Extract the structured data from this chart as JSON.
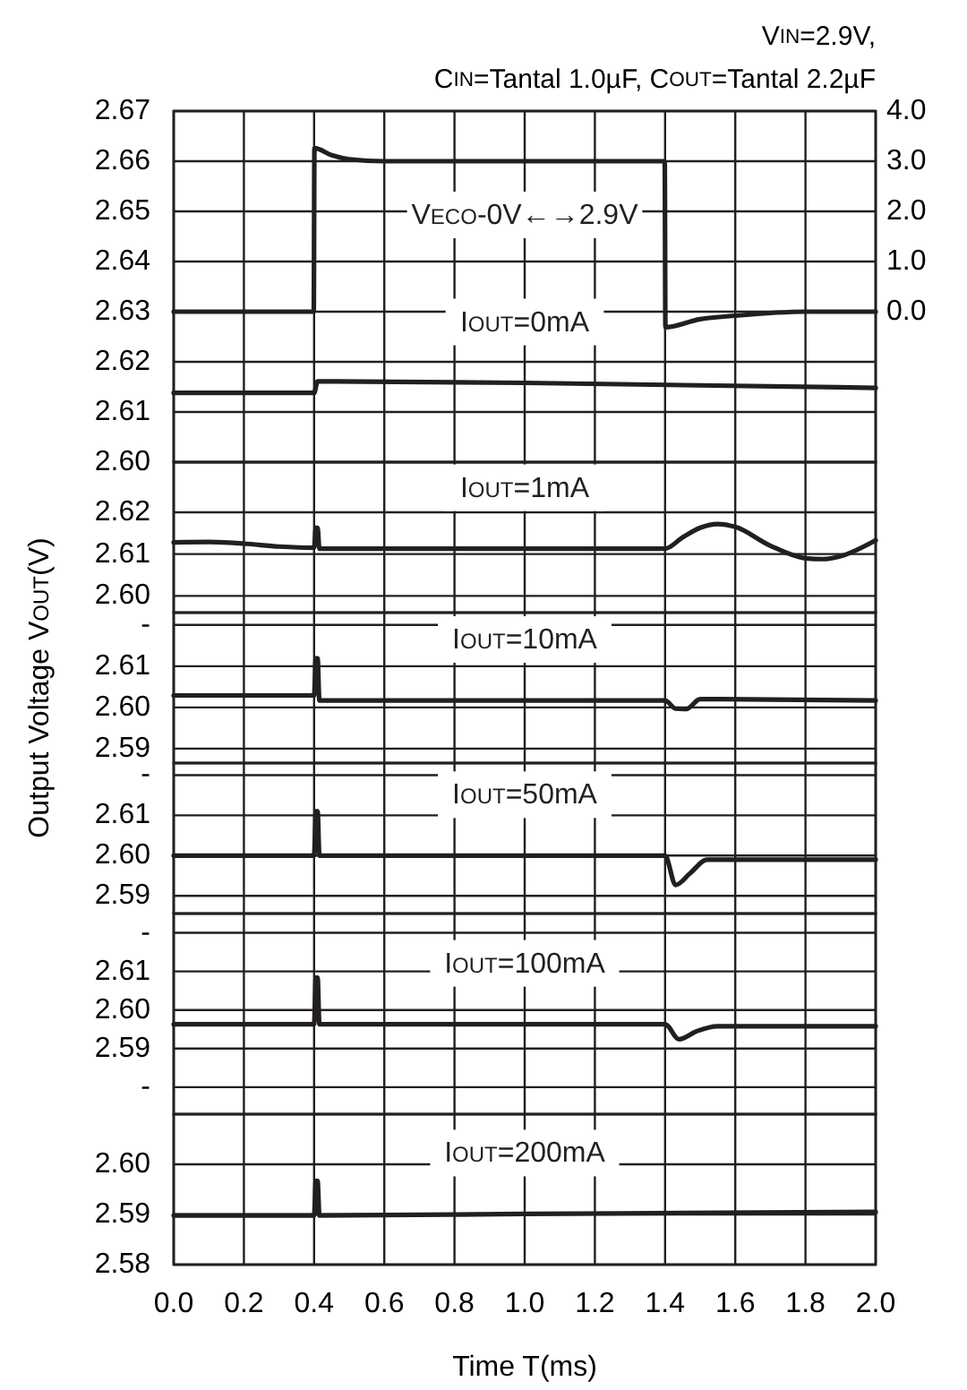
{
  "chart_data": [
    {
      "type": "line",
      "title": "V$_{IN}$=2.9V,",
      "subtitle": "C$_{IN}$=Tantal 1.0µF, C$_{OUT}$=Tantal 2.2µF",
      "xlim": [
        0,
        2
      ],
      "xticks": [
        0,
        0.2,
        0.4,
        0.6,
        0.8,
        1,
        1.2,
        1.4,
        1.6,
        1.8,
        2
      ],
      "ylim": [
        2.6,
        2.67
      ],
      "yticks": [
        2.67,
        2.66,
        2.65,
        2.64,
        2.63,
        2.62,
        2.61,
        {
          "value": 2.6,
          "label": "2.60"
        }
      ],
      "y2lim": [
        -3,
        4
      ],
      "y2ticks": [
        {
          "value": 4,
          "label": "4.0"
        },
        {
          "value": 3,
          "label": "3.0"
        },
        {
          "value": 2,
          "label": "2.0"
        },
        {
          "value": 1,
          "label": "1.0"
        },
        {
          "value": 0,
          "label": "0.0"
        }
      ],
      "grid": true,
      "tick_labels": "y",
      "series": [
        {
          "name": "V$_{ECO}$-0V←→2.9V",
          "color": "#231f20",
          "axis": "y2",
          "x": [
            0,
            0.399,
            0.401,
            0.45,
            0.5,
            0.6,
            1.399,
            1.401,
            1.5,
            1.6,
            1.8,
            2.0
          ],
          "values": [
            0,
            0,
            3.26,
            3.12,
            3.04,
            3.0,
            3.0,
            -0.31,
            -0.15,
            -0.08,
            0,
            0
          ]
        },
        {
          "name": "I$_{OUT}$=0mA",
          "color": "#231f20",
          "x": [
            0,
            0.4,
            0.41,
            1.0,
            2.0
          ],
          "values": [
            2.6138,
            2.6138,
            2.6161,
            2.6158,
            2.6148
          ]
        }
      ]
    },
    {
      "type": "line",
      "xlim": [
        0,
        2
      ],
      "xticks": [
        0,
        0.2,
        0.4,
        0.6,
        0.8,
        1,
        1.2,
        1.4,
        1.6,
        1.8,
        2
      ],
      "ylim": [
        2.596,
        2.632
      ],
      "yticks": [
        2.62,
        2.61,
        {
          "value": 2.6,
          "label": "2.60"
        }
      ],
      "grid": true,
      "tick_labels": "y",
      "series": [
        {
          "name": "I$_{OUT}$=1mA",
          "color": "#231f20",
          "x": [
            0,
            0.1,
            0.2,
            0.3,
            0.4,
            0.405,
            0.41,
            0.415,
            0.5,
            1.0,
            1.4,
            1.45,
            1.5,
            1.55,
            1.6,
            1.7,
            1.8,
            1.85,
            1.9,
            2.0
          ],
          "values": [
            2.6128,
            2.6129,
            2.6125,
            2.6118,
            2.6115,
            2.6163,
            2.6163,
            2.6113,
            2.6113,
            2.6113,
            2.6113,
            2.614,
            2.6163,
            2.6172,
            2.6165,
            2.612,
            2.609,
            2.6088,
            2.6095,
            2.6133
          ]
        }
      ]
    },
    {
      "type": "line",
      "xlim": [
        0,
        2
      ],
      "xticks": [
        0,
        0.2,
        0.4,
        0.6,
        0.8,
        1,
        1.2,
        1.4,
        1.6,
        1.8,
        2
      ],
      "ylim": [
        2.5865,
        2.623
      ],
      "yticks": [
        {
          "value": 2.62,
          "label": "-"
        },
        2.61,
        {
          "value": 2.6,
          "label": "2.60"
        },
        2.59
      ],
      "grid": true,
      "tick_labels": "y",
      "ylabel": "Output Voltage V$_{OUT}$(V)",
      "series": [
        {
          "name": "I$_{OUT}$=10mA",
          "color": "#231f20",
          "x": [
            0,
            0.4,
            0.405,
            0.41,
            0.415,
            1.4,
            1.43,
            1.46,
            1.5,
            2.0
          ],
          "values": [
            2.6029,
            2.6029,
            2.6119,
            2.6119,
            2.6017,
            2.6017,
            2.5997,
            2.5996,
            2.602,
            2.6017
          ]
        }
      ]
    },
    {
      "type": "line",
      "xlim": [
        0,
        2
      ],
      "xticks": [
        0,
        0.2,
        0.4,
        0.6,
        0.8,
        1,
        1.2,
        1.4,
        1.6,
        1.8,
        2
      ],
      "ylim": [
        2.5856,
        2.623
      ],
      "yticks": [
        {
          "value": 2.62,
          "label": "-"
        },
        2.61,
        {
          "value": 2.6,
          "label": "2.60"
        },
        2.59
      ],
      "grid": true,
      "tick_labels": "y",
      "series": [
        {
          "name": "I$_{OUT}$=50mA",
          "color": "#231f20",
          "x": [
            0,
            0.4,
            0.405,
            0.41,
            0.415,
            1.4,
            1.43,
            1.47,
            1.52,
            2.0
          ],
          "values": [
            2.6,
            2.6,
            2.611,
            2.611,
            2.6,
            2.6,
            2.5927,
            2.5955,
            2.599,
            2.599
          ]
        }
      ]
    },
    {
      "type": "line",
      "xlim": [
        0,
        2
      ],
      "xticks": [
        0,
        0.2,
        0.4,
        0.6,
        0.8,
        1,
        1.2,
        1.4,
        1.6,
        1.8,
        2
      ],
      "ylim": [
        2.573,
        2.625
      ],
      "yticks": [
        {
          "value": 2.62,
          "label": "-"
        },
        2.61,
        {
          "value": 2.6,
          "label": "2.60"
        },
        2.59,
        {
          "value": 2.58,
          "label": "-"
        }
      ],
      "grid": true,
      "tick_labels": "y",
      "series": [
        {
          "name": "I$_{OUT}$=100mA",
          "color": "#231f20",
          "x": [
            0,
            0.4,
            0.405,
            0.41,
            0.415,
            1.4,
            1.44,
            1.49,
            1.55,
            2.0
          ],
          "values": [
            2.5963,
            2.5963,
            2.6084,
            2.6084,
            2.5963,
            2.5963,
            2.5924,
            2.5945,
            2.5958,
            2.5958
          ]
        }
      ]
    },
    {
      "type": "line",
      "xlim": [
        0,
        2
      ],
      "xticks": [
        {
          "value": 0,
          "label": "0.0"
        },
        {
          "value": 0.2,
          "label": "0.2"
        },
        {
          "value": 0.4,
          "label": "0.4"
        },
        {
          "value": 0.6,
          "label": "0.6"
        },
        {
          "value": 0.8,
          "label": "0.8"
        },
        {
          "value": 1,
          "label": "1.0"
        },
        {
          "value": 1.2,
          "label": "1.2"
        },
        {
          "value": 1.4,
          "label": "1.4"
        },
        {
          "value": 1.6,
          "label": "1.6"
        },
        {
          "value": 1.8,
          "label": "1.8"
        },
        {
          "value": 2,
          "label": "2.0"
        }
      ],
      "ylim": [
        2.58,
        2.61
      ],
      "yticks": [
        {
          "value": 2.6,
          "label": "2.60"
        },
        2.59,
        2.58
      ],
      "grid": true,
      "xlabel": "Time T(ms)",
      "series": [
        {
          "name": "I$_{OUT}$=200mA",
          "color": "#231f20",
          "x": [
            0,
            0.4,
            0.405,
            0.41,
            0.415,
            1.0,
            2.0
          ],
          "values": [
            2.5898,
            2.5898,
            2.5967,
            2.5967,
            2.5898,
            2.5901,
            2.5905
          ]
        }
      ]
    }
  ]
}
